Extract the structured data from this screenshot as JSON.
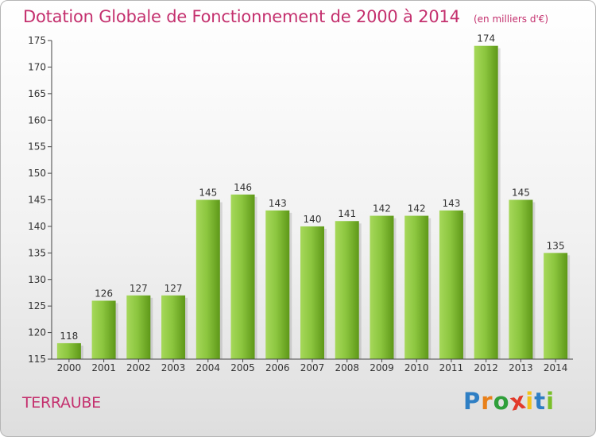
{
  "title": "Dotation Globale de Fonctionnement de 2000 à 2014",
  "subtitle": "(en milliers d'€)",
  "commune": "TERRAUBE",
  "brand": {
    "letters": [
      "P",
      "r",
      "o",
      "x",
      "i",
      "t",
      "i"
    ],
    "colors": [
      "#2f7fc4",
      "#e8801a",
      "#2f9f3a",
      "#e23a2a",
      "#f2c21a",
      "#2f7fc4",
      "#7abf2a"
    ]
  },
  "colors": {
    "bar_top": "#a6d85a",
    "bar_bottom": "#5e9818",
    "title": "#c4306e"
  },
  "chart_data": {
    "type": "bar",
    "categories": [
      "2000",
      "2001",
      "2002",
      "2003",
      "2004",
      "2005",
      "2006",
      "2007",
      "2008",
      "2009",
      "2010",
      "2011",
      "2012",
      "2013",
      "2014"
    ],
    "values": [
      118,
      126,
      127,
      127,
      145,
      146,
      143,
      140,
      141,
      142,
      142,
      143,
      174,
      145,
      135
    ],
    "ylim": [
      115,
      175
    ],
    "yticks": [
      115,
      120,
      125,
      130,
      135,
      140,
      145,
      150,
      155,
      160,
      165,
      170,
      175
    ],
    "grid": false,
    "data_labels": true
  }
}
